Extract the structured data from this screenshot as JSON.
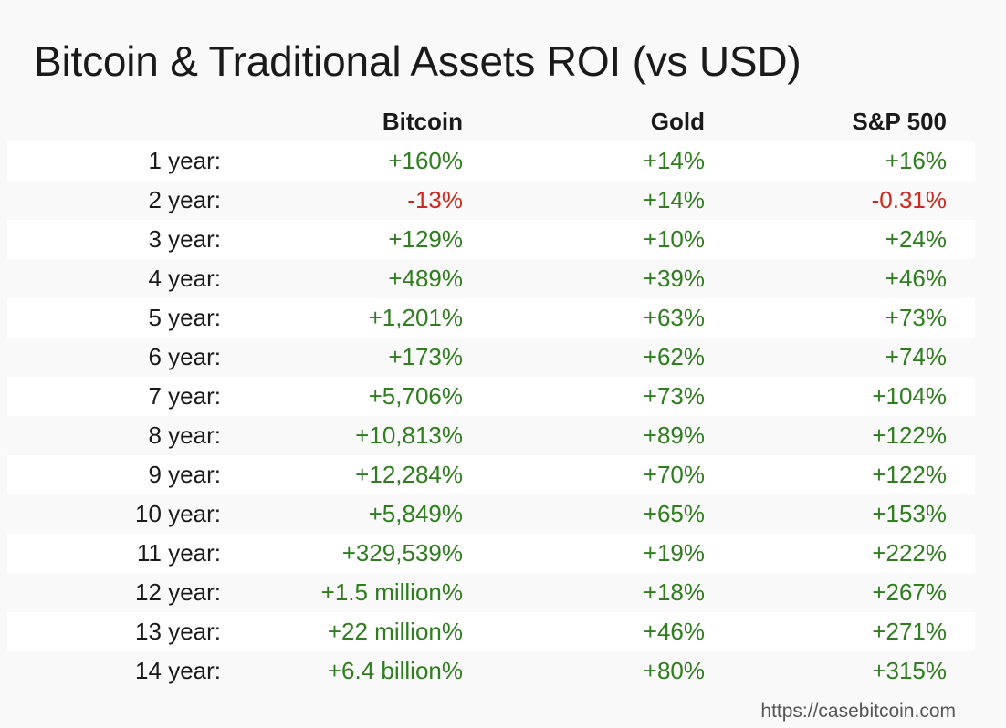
{
  "colors": {
    "positive": "#2e7d1e",
    "negative": "#d0281e",
    "text": "#1a1a1a",
    "background": "#f9f9f9",
    "row_highlight": "#ffffff"
  },
  "chart_data": {
    "type": "table",
    "title": "Bitcoin & Traditional Assets ROI (vs USD)",
    "columns": [
      "Bitcoin",
      "Gold",
      "S&P 500"
    ],
    "rows": [
      {
        "label": "1 year:",
        "values": [
          "+160%",
          "+14%",
          "+16%"
        ]
      },
      {
        "label": "2 year:",
        "values": [
          "-13%",
          "+14%",
          "-0.31%"
        ]
      },
      {
        "label": "3 year:",
        "values": [
          "+129%",
          "+10%",
          "+24%"
        ]
      },
      {
        "label": "4 year:",
        "values": [
          "+489%",
          "+39%",
          "+46%"
        ]
      },
      {
        "label": "5 year:",
        "values": [
          "+1,201%",
          "+63%",
          "+73%"
        ]
      },
      {
        "label": "6 year:",
        "values": [
          "+173%",
          "+62%",
          "+74%"
        ]
      },
      {
        "label": "7 year:",
        "values": [
          "+5,706%",
          "+73%",
          "+104%"
        ]
      },
      {
        "label": "8 year:",
        "values": [
          "+10,813%",
          "+89%",
          "+122%"
        ]
      },
      {
        "label": "9 year:",
        "values": [
          "+12,284%",
          "+70%",
          "+122%"
        ]
      },
      {
        "label": "10 year:",
        "values": [
          "+5,849%",
          "+65%",
          "+153%"
        ]
      },
      {
        "label": "11 year:",
        "values": [
          "+329,539%",
          "+19%",
          "+222%"
        ]
      },
      {
        "label": "12 year:",
        "values": [
          "+1.5 million%",
          "+18%",
          "+267%"
        ]
      },
      {
        "label": "13 year:",
        "values": [
          "+22 million%",
          "+46%",
          "+271%"
        ]
      },
      {
        "label": "14 year:",
        "values": [
          "+6.4 billion%",
          "+80%",
          "+315%"
        ]
      }
    ],
    "source": "https://casebitcoin.com"
  }
}
